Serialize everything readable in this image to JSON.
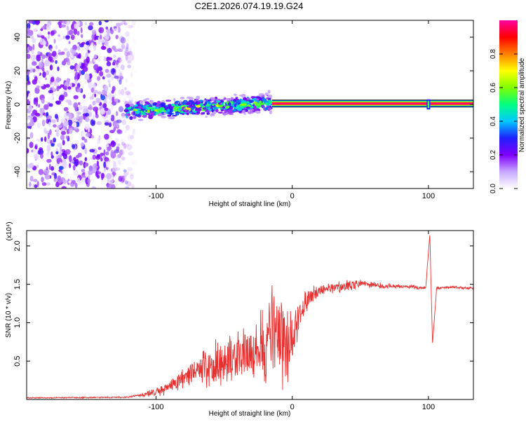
{
  "title": "C2E1.2026.074.19.19.G24",
  "chart_data": [
    {
      "type": "heatmap",
      "title": "C2E1.2026.074.19.19.G24",
      "xlabel": "Height of straight line (km)",
      "ylabel": "Frequency (Hz)",
      "xlim": [
        -195,
        133
      ],
      "ylim": [
        -50,
        50
      ],
      "xticks": [
        -100,
        0,
        100
      ],
      "xtick_labels": [
        "-100",
        "0",
        "100"
      ],
      "yticks": [
        -40,
        -20,
        0,
        20,
        40
      ],
      "ytick_labels": [
        "-40",
        "-20",
        "0",
        "20",
        "40"
      ],
      "regions": [
        {
          "name": "noise",
          "x_range": [
            -195,
            -115
          ],
          "freq_range": [
            -50,
            50
          ],
          "amplitude_range": [
            0.0,
            0.25
          ]
        },
        {
          "name": "signal-onset",
          "x_range": [
            -122,
            -15
          ],
          "freq_center_start": -4,
          "freq_center_end": 1,
          "freq_spread": 4,
          "amplitude_range": [
            0.2,
            0.75
          ]
        },
        {
          "name": "stable-signal",
          "x_range": [
            -15,
            133
          ],
          "freq_center": 0.5,
          "freq_spread": 1.2,
          "amplitude_range": [
            0.9,
            1.0
          ]
        }
      ],
      "spikes": [
        {
          "x": 100,
          "freq_spread": 3
        }
      ],
      "colorbar": {
        "label": "Normalized spectral amplitude",
        "range": [
          0.0,
          1.0
        ],
        "ticks": [
          0.0,
          0.2,
          0.4,
          0.6,
          0.8
        ],
        "tick_labels": [
          "0.0",
          "0.2",
          "0.4",
          "0.6",
          "0.8"
        ],
        "colors": [
          "#ffffff",
          "#c8a8ff",
          "#8000ff",
          "#2020ff",
          "#00c8ff",
          "#00ff80",
          "#80ff00",
          "#ffff00",
          "#ff8000",
          "#ff0000",
          "#ff00a0"
        ]
      }
    },
    {
      "type": "line",
      "xlabel": "Height of straight line (km)",
      "ylabel": "SNR (10 * v/v)",
      "scale_label": "(x10⁴)",
      "xlim": [
        -195,
        133
      ],
      "ylim": [
        0,
        2.2
      ],
      "xticks": [
        -100,
        0,
        100
      ],
      "xtick_labels": [
        "-100",
        "0",
        "100"
      ],
      "yticks": [
        0.5,
        1.0,
        1.5,
        2.0
      ],
      "ytick_labels": [
        "0.5",
        "1.0",
        "1.5",
        "2.0"
      ],
      "line_color": "#e83030",
      "series": [
        {
          "name": "SNR",
          "envelope_x": [
            -195,
            -120,
            -105,
            -90,
            -80,
            -70,
            -60,
            -50,
            -40,
            -30,
            -20,
            -15,
            -10,
            -5,
            0,
            5,
            10,
            15,
            20,
            30,
            40,
            50,
            60,
            70,
            80,
            90,
            98,
            101,
            103,
            106,
            110,
            120,
            133
          ],
          "envelope_y": [
            0.02,
            0.03,
            0.08,
            0.15,
            0.28,
            0.36,
            0.42,
            0.5,
            0.52,
            0.62,
            0.7,
            0.9,
            0.82,
            0.7,
            0.8,
            1.1,
            1.25,
            1.35,
            1.42,
            1.45,
            1.48,
            1.5,
            1.49,
            1.48,
            1.47,
            1.46,
            1.45,
            2.15,
            0.72,
            1.45,
            1.46,
            1.46,
            1.45
          ],
          "noise_amp_y": [
            0.01,
            0.01,
            0.05,
            0.1,
            0.2,
            0.28,
            0.32,
            0.4,
            0.4,
            0.45,
            0.6,
            0.7,
            0.75,
            0.7,
            0.5,
            0.3,
            0.2,
            0.15,
            0.1,
            0.08,
            0.1,
            0.07,
            0.05,
            0.04,
            0.03,
            0.03,
            0.03,
            0.0,
            0.0,
            0.03,
            0.02,
            0.02,
            0.02
          ]
        }
      ]
    }
  ]
}
